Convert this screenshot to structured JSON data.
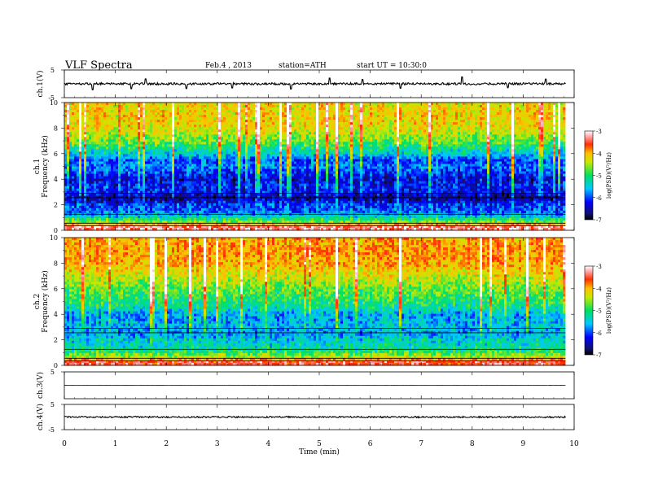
{
  "header": {
    "title": "VLF  Spectra",
    "date": "Feb.4 , 2013",
    "station": "station=ATH",
    "start": "start  UT =   10:30:0"
  },
  "chart_data": {
    "type": "heatmap",
    "time_axis": {
      "label": "Time (min)",
      "range": [
        0,
        10
      ],
      "ticks": [
        0,
        1,
        2,
        3,
        4,
        5,
        6,
        7,
        8,
        9,
        10
      ],
      "data_end": 9.83
    },
    "panels": [
      {
        "id": "ch1-waveform",
        "type": "line",
        "ylabel": "ch.1(V)",
        "ylim": [
          -5,
          5
        ],
        "yticks": [
          5,
          -5
        ],
        "baseline": 0,
        "noise_amplitude": 0.4,
        "spikes": [
          {
            "t": 0.55,
            "v": -2.2
          },
          {
            "t": 1.32,
            "v": -1.8
          },
          {
            "t": 1.6,
            "v": 1.8
          },
          {
            "t": 2.4,
            "v": -1.7
          },
          {
            "t": 3.3,
            "v": -1.5
          },
          {
            "t": 4.45,
            "v": -1.9
          },
          {
            "t": 5.2,
            "v": 2.1
          },
          {
            "t": 5.85,
            "v": 1.6
          },
          {
            "t": 6.6,
            "v": -1.6
          },
          {
            "t": 7.8,
            "v": 2.5
          },
          {
            "t": 8.7,
            "v": -1.4
          },
          {
            "t": 9.45,
            "v": 1.7
          }
        ]
      },
      {
        "id": "ch1-spectrogram",
        "type": "heatmap",
        "ylabel": "Frequency (kHz)",
        "channel_label": "ch.1",
        "ylim": [
          0,
          10
        ],
        "yticks": [
          0,
          2,
          4,
          6,
          8,
          10
        ],
        "freq_profile_log_psd": [
          [
            0.3,
            -3.4
          ],
          [
            0.6,
            -4.8
          ],
          [
            1.0,
            -5.6
          ],
          [
            1.5,
            -6.2
          ],
          [
            2.0,
            -6.3
          ],
          [
            2.5,
            -6.8
          ],
          [
            3.0,
            -6.5
          ],
          [
            3.5,
            -6.4
          ],
          [
            4.0,
            -6.6
          ],
          [
            4.5,
            -6.3
          ],
          [
            5.0,
            -6.1
          ],
          [
            5.5,
            -6.2
          ],
          [
            6.0,
            -5.7
          ],
          [
            7.0,
            -5.0
          ],
          [
            8.0,
            -4.5
          ],
          [
            9.0,
            -4.4
          ],
          [
            10.0,
            -4.5
          ]
        ],
        "colorbar": {
          "label": "log(PSD)(V²/Hz)",
          "range": [
            -7,
            -3
          ],
          "ticks": [
            -3,
            -4,
            -5,
            -6,
            -7
          ]
        }
      },
      {
        "id": "ch2-spectrogram",
        "type": "heatmap",
        "ylabel": "Frequency (kHz)",
        "channel_label": "ch.2",
        "ylim": [
          0,
          10
        ],
        "yticks": [
          0,
          2,
          4,
          6,
          8,
          10
        ],
        "freq_profile_log_psd": [
          [
            0.3,
            -3.6
          ],
          [
            0.6,
            -4.6
          ],
          [
            1.0,
            -5.2
          ],
          [
            1.5,
            -5.6
          ],
          [
            2.0,
            -5.7
          ],
          [
            2.5,
            -6.0
          ],
          [
            3.0,
            -5.8
          ],
          [
            3.5,
            -5.9
          ],
          [
            4.0,
            -5.9
          ],
          [
            4.5,
            -5.5
          ],
          [
            5.0,
            -5.3
          ],
          [
            6.0,
            -5.0
          ],
          [
            7.0,
            -4.6
          ],
          [
            8.0,
            -4.2
          ],
          [
            9.0,
            -4.1
          ],
          [
            10.0,
            -4.2
          ]
        ],
        "colorbar": {
          "label": "log(PSD)(V²/Hz)",
          "range": [
            -7,
            -3
          ],
          "ticks": [
            -3,
            -4,
            -5,
            -6,
            -7
          ]
        }
      },
      {
        "id": "ch3-waveform",
        "type": "line",
        "ylabel": "ch.3(V)",
        "ylim": [
          -5,
          5
        ],
        "yticks": [
          5
        ],
        "baseline": 0,
        "noise_amplitude": 0.05,
        "spikes": []
      },
      {
        "id": "ch4-waveform",
        "type": "line",
        "ylabel": "ch.4(V)",
        "ylim": [
          -5,
          5
        ],
        "yticks": [
          5,
          -5
        ],
        "baseline": 0,
        "noise_amplitude": 0.3,
        "spikes": []
      }
    ]
  }
}
